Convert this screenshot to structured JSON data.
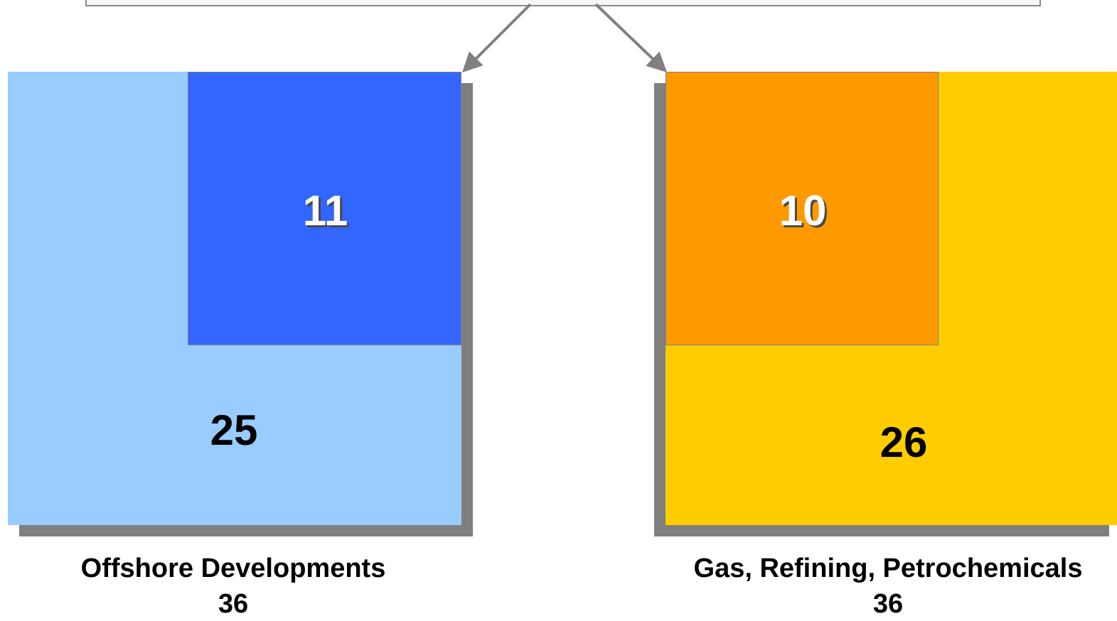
{
  "colors": {
    "offshore_outer": "#99ccff",
    "offshore_inner": "#3366ff",
    "gas_outer": "#ffcc00",
    "gas_inner": "#ff9900",
    "shadow": "#7f7f7f",
    "arrow": "#808080"
  },
  "left_panel": {
    "inner_value": "11",
    "outer_value": "25",
    "title": "Offshore Developments",
    "total": "36"
  },
  "right_panel": {
    "inner_value": "10",
    "outer_value": "26",
    "title": "Gas, Refining, Petrochemicals",
    "total": "36"
  }
}
